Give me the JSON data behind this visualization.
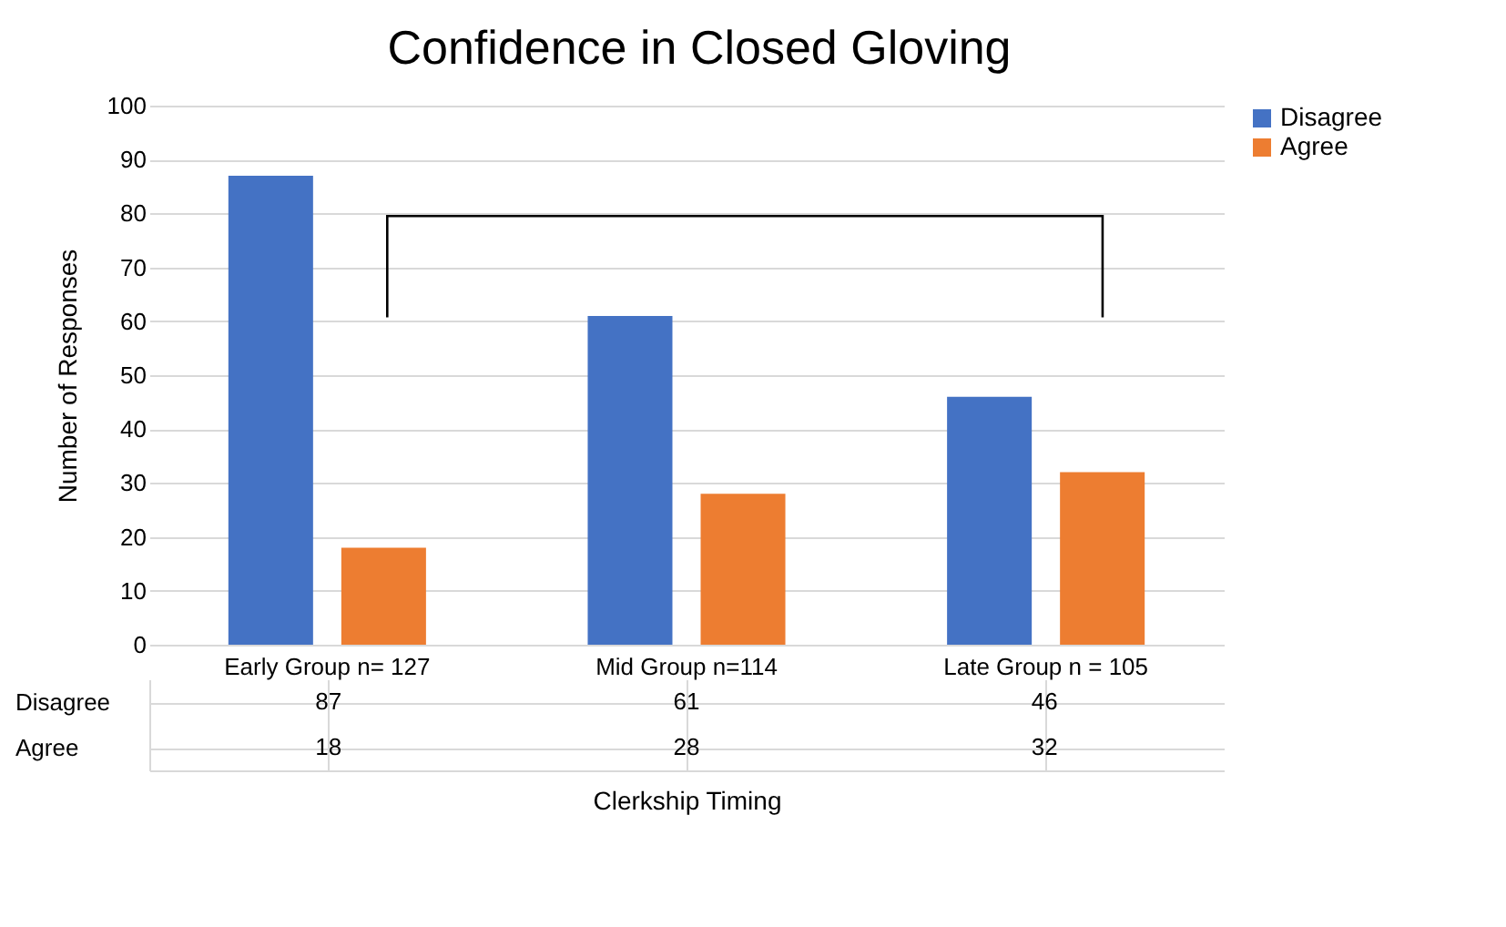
{
  "chart_data": {
    "type": "bar",
    "title": "Confidence in Closed Gloving",
    "xlabel": "Clerkship Timing",
    "ylabel": "Number of Responses",
    "categories": [
      "Early Group n= 127",
      "Mid Group n=114",
      "Late Group n = 105"
    ],
    "series": [
      {
        "name": "Disagree",
        "color": "#4472c4",
        "values": [
          87,
          61,
          46
        ]
      },
      {
        "name": "Agree",
        "color": "#ed7d31",
        "values": [
          18,
          28,
          32
        ]
      }
    ],
    "ylim": [
      0,
      100
    ],
    "yticks": [
      0,
      10,
      20,
      30,
      40,
      50,
      60,
      70,
      80,
      90,
      100
    ],
    "grid": "y",
    "legend": "right",
    "data_labels": true
  }
}
